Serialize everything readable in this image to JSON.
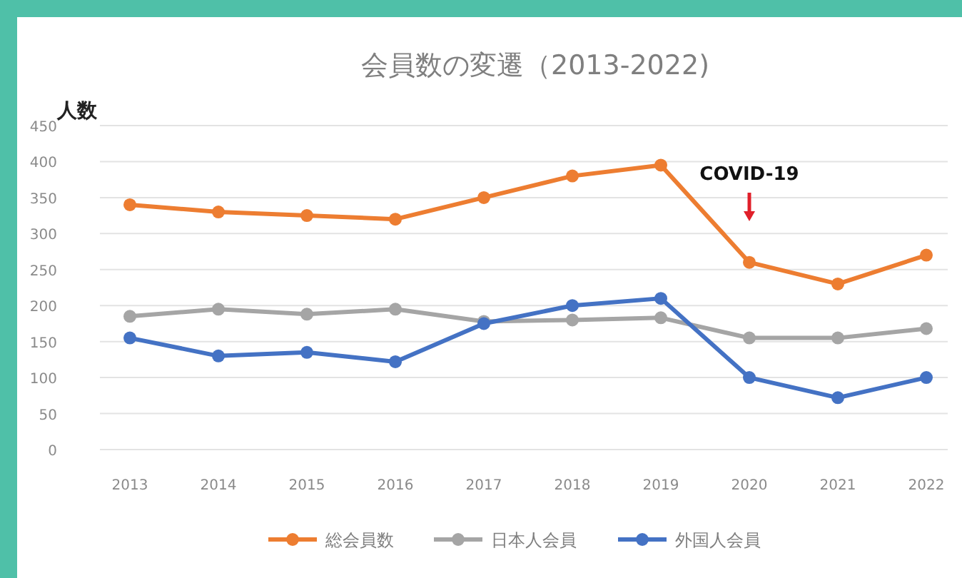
{
  "chart_data": {
    "type": "line",
    "title": "会員数の変遷（2013-2022)",
    "ylabel": "人数",
    "categories": [
      "2013",
      "2014",
      "2015",
      "2016",
      "2017",
      "2018",
      "2019",
      "2020",
      "2021",
      "2022"
    ],
    "series": [
      {
        "name": "総会員数",
        "color": "#ed7d31",
        "values": [
          340,
          330,
          325,
          320,
          350,
          380,
          395,
          260,
          230,
          270
        ]
      },
      {
        "name": "日本人会員",
        "color": "#a5a5a5",
        "values": [
          185,
          195,
          188,
          195,
          178,
          180,
          183,
          155,
          155,
          168
        ]
      },
      {
        "name": "外国人会員",
        "color": "#4472c4",
        "values": [
          155,
          130,
          135,
          122,
          175,
          200,
          210,
          100,
          72,
          100
        ]
      }
    ],
    "ylim": [
      0,
      450
    ],
    "yticks": [
      0,
      50,
      100,
      150,
      200,
      250,
      300,
      350,
      400,
      450
    ],
    "grid": "y",
    "legend": "bottom",
    "marker": "circle",
    "line_style": "solid",
    "annotations": [
      "COVID-19"
    ]
  }
}
